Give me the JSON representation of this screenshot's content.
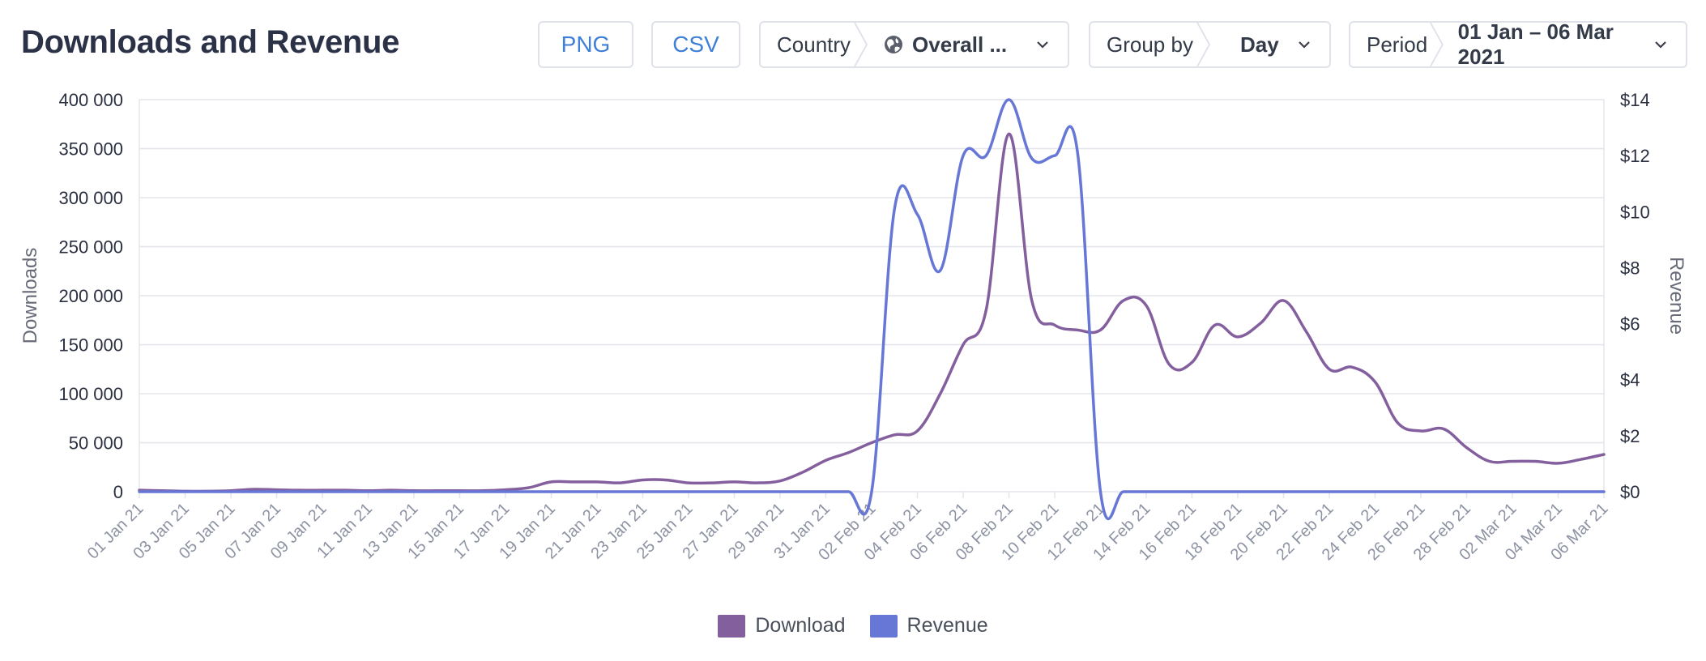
{
  "header": {
    "title": "Downloads and Revenue",
    "png_label": "PNG",
    "csv_label": "CSV",
    "country_label": "Country",
    "country_value": "Overall ...",
    "group_label": "Group by",
    "group_value": "Day",
    "period_label": "Period",
    "period_value": "01 Jan – 06 Mar 2021"
  },
  "colors": {
    "download": "#845f9e",
    "revenue": "#6677d6",
    "grid": "#e3e5ea",
    "accent": "#3f7fd6"
  },
  "legend": {
    "download": "Download",
    "revenue": "Revenue"
  },
  "chart_data": {
    "type": "line",
    "ylabel": "Downloads",
    "ylabel_right": "Revenue",
    "ylim": [
      0,
      400000
    ],
    "ylim_right": [
      0,
      14
    ],
    "yticks": [
      "0",
      "50 000",
      "100 000",
      "150 000",
      "200 000",
      "250 000",
      "300 000",
      "350 000",
      "400 000"
    ],
    "yticks_right": [
      "$0",
      "$2",
      "$4",
      "$6",
      "$8",
      "$10",
      "$12",
      "$14"
    ],
    "grid": true,
    "legend_position": "bottom",
    "x": [
      "01 Jan 21",
      "02 Jan 21",
      "03 Jan 21",
      "04 Jan 21",
      "05 Jan 21",
      "06 Jan 21",
      "07 Jan 21",
      "08 Jan 21",
      "09 Jan 21",
      "10 Jan 21",
      "11 Jan 21",
      "12 Jan 21",
      "13 Jan 21",
      "14 Jan 21",
      "15 Jan 21",
      "16 Jan 21",
      "17 Jan 21",
      "18 Jan 21",
      "19 Jan 21",
      "20 Jan 21",
      "21 Jan 21",
      "22 Jan 21",
      "23 Jan 21",
      "24 Jan 21",
      "25 Jan 21",
      "26 Jan 21",
      "27 Jan 21",
      "28 Jan 21",
      "29 Jan 21",
      "30 Jan 21",
      "31 Jan 21",
      "01 Feb 21",
      "02 Feb 21",
      "03 Feb 21",
      "04 Feb 21",
      "05 Feb 21",
      "06 Feb 21",
      "07 Feb 21",
      "08 Feb 21",
      "09 Feb 21",
      "10 Feb 21",
      "11 Feb 21",
      "12 Feb 21",
      "13 Feb 21",
      "14 Feb 21",
      "15 Feb 21",
      "16 Feb 21",
      "17 Feb 21",
      "18 Feb 21",
      "19 Feb 21",
      "20 Feb 21",
      "21 Feb 21",
      "22 Feb 21",
      "23 Feb 21",
      "24 Feb 21",
      "25 Feb 21",
      "26 Feb 21",
      "27 Feb 21",
      "28 Feb 21",
      "01 Mar 21",
      "02 Mar 21",
      "03 Mar 21",
      "04 Mar 21",
      "05 Mar 21",
      "06 Mar 21"
    ],
    "xtick_labels": [
      "01 Jan 21",
      "03 Jan 21",
      "05 Jan 21",
      "07 Jan 21",
      "09 Jan 21",
      "11 Jan 21",
      "13 Jan 21",
      "15 Jan 21",
      "17 Jan 21",
      "19 Jan 21",
      "21 Jan 21",
      "23 Jan 21",
      "25 Jan 21",
      "27 Jan 21",
      "29 Jan 21",
      "31 Jan 21",
      "02 Feb 21",
      "04 Feb 21",
      "06 Feb 21",
      "08 Feb 21",
      "10 Feb 21",
      "12 Feb 21",
      "14 Feb 21",
      "16 Feb 21",
      "18 Feb 21",
      "20 Feb 21",
      "22 Feb 21",
      "24 Feb 21",
      "26 Feb 21",
      "28 Feb 21",
      "02 Mar 21",
      "04 Mar 21",
      "06 Mar 21"
    ],
    "series": [
      {
        "name": "Download",
        "axis": "left",
        "values": [
          1500,
          1000,
          500,
          500,
          1000,
          2500,
          2000,
          1500,
          1500,
          1500,
          1000,
          1500,
          1000,
          1000,
          1000,
          1000,
          2000,
          4000,
          10000,
          10000,
          10000,
          9000,
          12000,
          12000,
          9000,
          9000,
          10000,
          9000,
          11000,
          20000,
          32000,
          40000,
          50000,
          58000,
          62000,
          100000,
          150000,
          185000,
          365000,
          195000,
          170000,
          165000,
          165000,
          195000,
          190000,
          130000,
          132000,
          170000,
          158000,
          172000,
          195000,
          163000,
          125000,
          127000,
          112000,
          70000,
          62000,
          64000,
          45000,
          31000,
          31000,
          31000,
          29000,
          33000,
          38000
        ]
      },
      {
        "name": "Revenue",
        "axis": "right",
        "values": [
          0,
          0,
          0,
          0,
          0,
          0,
          0,
          0,
          0,
          0,
          0,
          0,
          0,
          0,
          0,
          0,
          0,
          0,
          0,
          0,
          0,
          0,
          0,
          0,
          0,
          0,
          0,
          0,
          0,
          0,
          0,
          0,
          0,
          10.1,
          9.9,
          7.9,
          12.0,
          12.0,
          14.0,
          11.9,
          12.0,
          12.1,
          0,
          0,
          0,
          0,
          0,
          0,
          0,
          0,
          0,
          0,
          0,
          0,
          0,
          0,
          0,
          0,
          0,
          0,
          0,
          0,
          0,
          0,
          0
        ]
      }
    ]
  }
}
